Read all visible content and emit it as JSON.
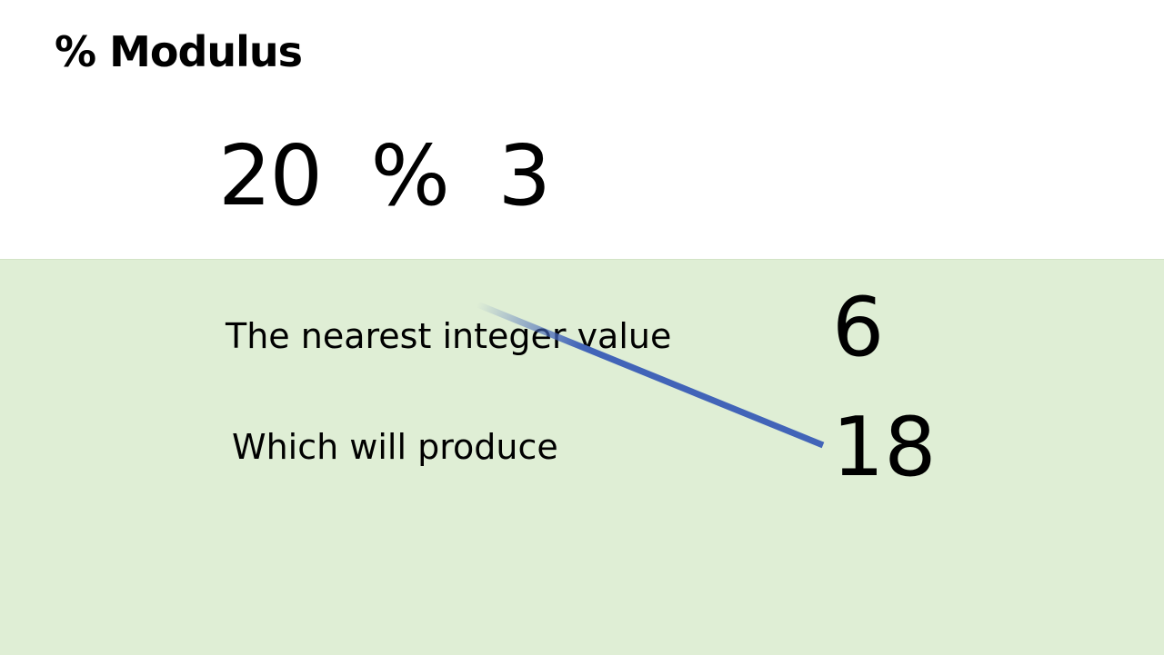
{
  "slide": {
    "title": "% Modulus",
    "expression": "20  %  3",
    "rows": [
      {
        "label": "The nearest integer value",
        "value": "6"
      },
      {
        "label": "Which will produce",
        "value": "18"
      }
    ],
    "panel_color": "#dfeed5",
    "line_color": "#4264b8"
  }
}
